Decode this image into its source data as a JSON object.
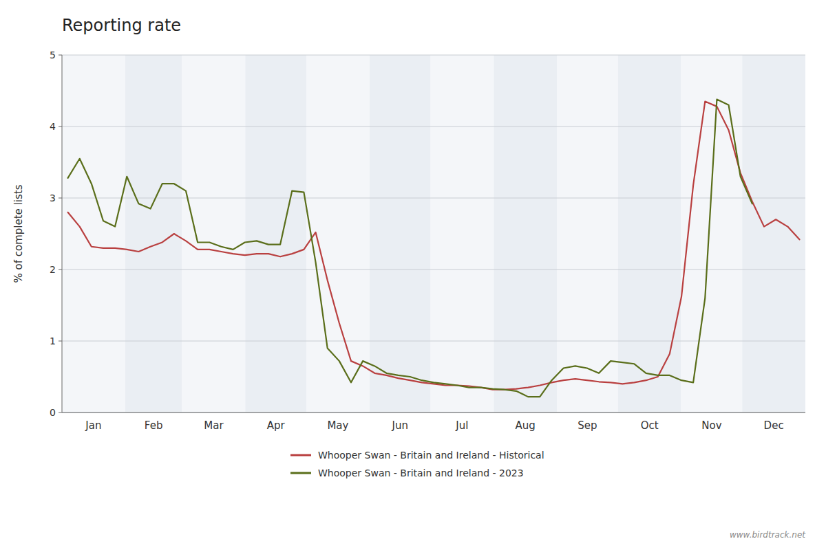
{
  "chart_data": {
    "type": "line",
    "title": "Reporting rate",
    "y_label": "% of complete lists",
    "ylim": [
      0,
      5
    ],
    "yticks": [
      0,
      1,
      2,
      3,
      4,
      5
    ],
    "xlim": [
      0,
      365
    ],
    "months": [
      "Jan",
      "Feb",
      "Mar",
      "Apr",
      "May",
      "Jun",
      "Jul",
      "Aug",
      "Sep",
      "Oct",
      "Nov",
      "Dec"
    ],
    "month_days": [
      31,
      28,
      31,
      30,
      31,
      30,
      31,
      31,
      30,
      31,
      30,
      31
    ],
    "tick_labels": "y",
    "grid": true,
    "legend": "bottom",
    "annotations": [
      "www.birdtrack.net"
    ],
    "series": [
      {
        "name": "Whooper Swan - Britain and Ireland - Historical",
        "color": "#b94040",
        "values": [
          2.8,
          2.6,
          2.32,
          2.3,
          2.3,
          2.28,
          2.25,
          2.32,
          2.38,
          2.5,
          2.4,
          2.28,
          2.28,
          2.25,
          2.22,
          2.2,
          2.22,
          2.22,
          2.18,
          2.22,
          2.28,
          2.52,
          1.85,
          1.25,
          0.72,
          0.65,
          0.55,
          0.52,
          0.48,
          0.45,
          0.42,
          0.4,
          0.38,
          0.38,
          0.37,
          0.35,
          0.32,
          0.32,
          0.33,
          0.35,
          0.38,
          0.42,
          0.45,
          0.47,
          0.45,
          0.43,
          0.42,
          0.4,
          0.42,
          0.45,
          0.5,
          0.82,
          1.62,
          3.18,
          4.35,
          4.28,
          3.95,
          3.35,
          2.95,
          2.6,
          2.7,
          2.6,
          2.42
        ]
      },
      {
        "name": "Whooper Swan - Britain and Ireland - 2023",
        "color": "#5a6e1a",
        "values": [
          3.28,
          3.55,
          3.2,
          2.68,
          2.6,
          3.3,
          2.92,
          2.85,
          3.2,
          3.2,
          3.1,
          2.38,
          2.38,
          2.32,
          2.28,
          2.38,
          2.4,
          2.35,
          2.35,
          3.1,
          3.08,
          2.1,
          0.9,
          0.72,
          0.42,
          0.72,
          0.65,
          0.55,
          0.52,
          0.5,
          0.45,
          0.42,
          0.4,
          0.38,
          0.35,
          0.35,
          0.33,
          0.32,
          0.3,
          0.22,
          0.22,
          0.45,
          0.62,
          0.65,
          0.62,
          0.55,
          0.72,
          0.7,
          0.68,
          0.55,
          0.52,
          0.52,
          0.45,
          0.42,
          1.6,
          4.38,
          4.3,
          3.3,
          2.92,
          null,
          null,
          null,
          null
        ]
      }
    ]
  }
}
